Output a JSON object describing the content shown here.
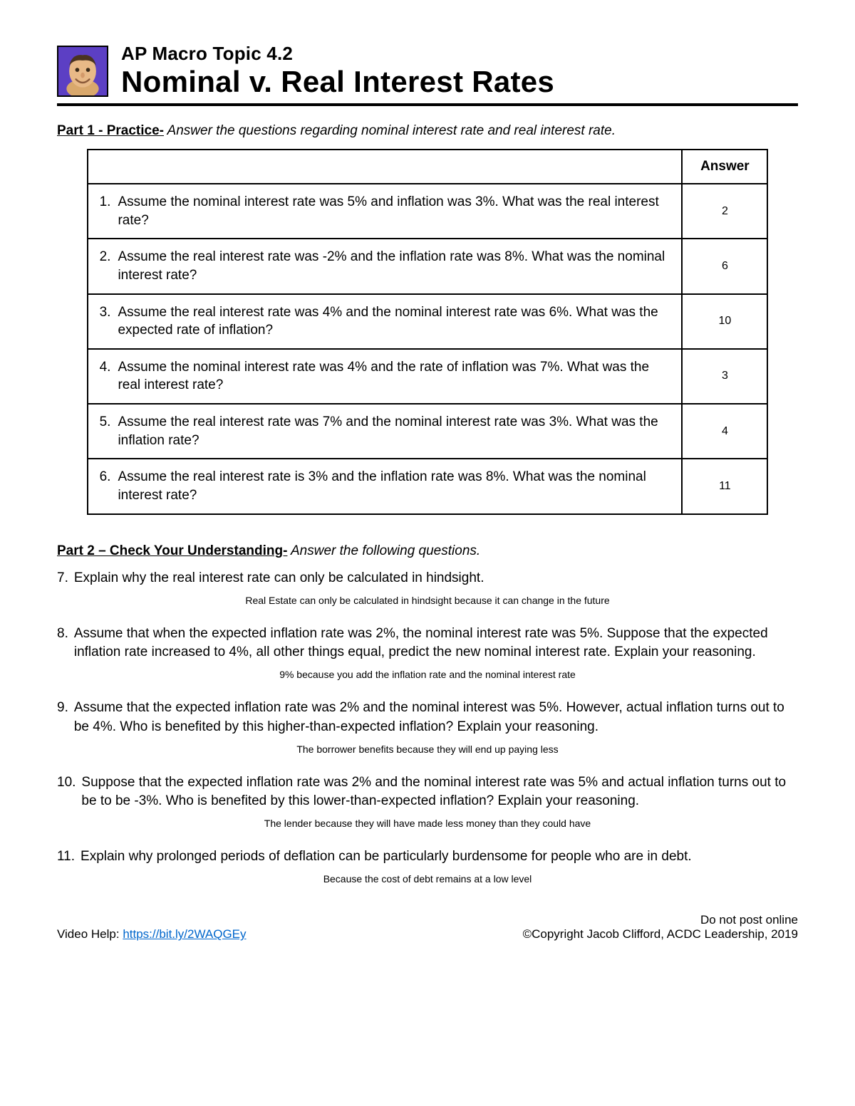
{
  "header": {
    "topic": "AP Macro Topic 4.2",
    "title": "Nominal v. Real Interest Rates"
  },
  "part1": {
    "label": "Part 1 - Practice-",
    "desc": " Answer the questions regarding nominal interest rate and real interest rate.",
    "answer_header": "Answer",
    "rows": [
      {
        "num": "1.",
        "text": "Assume the nominal interest rate was 5% and inflation was 3%. What was the real interest rate?",
        "answer": "2"
      },
      {
        "num": "2.",
        "text": "Assume the real interest rate was -2% and the inflation rate was 8%. What was the nominal interest rate?",
        "answer": "6"
      },
      {
        "num": "3.",
        "text": "Assume the real interest rate was 4% and the nominal interest rate was 6%. What was the expected rate of inflation?",
        "answer": "10"
      },
      {
        "num": "4.",
        "text": "Assume the nominal interest rate was 4% and the rate of inflation was 7%. What was the real interest rate?",
        "answer": "3"
      },
      {
        "num": "5.",
        "text": "Assume the real interest rate was 7% and the nominal interest rate was 3%. What was the inflation rate?",
        "answer": "4"
      },
      {
        "num": "6.",
        "text": "Assume the real interest rate is 3% and the inflation rate was 8%. What was the nominal interest rate?",
        "answer": "11"
      }
    ]
  },
  "part2": {
    "label": "Part 2 – Check Your Understanding-",
    "desc": " Answer the following questions.",
    "items": [
      {
        "num": "7.",
        "q": "Explain why the real interest rate can only be calculated in hindsight.",
        "a": "Real Estate can only be calculated in hindsight because it can change in the future"
      },
      {
        "num": "8.",
        "q": "Assume that when the expected inflation rate was 2%, the nominal interest rate was 5%. Suppose that the expected inflation rate increased to 4%, all other things equal, predict the new nominal interest rate. Explain your reasoning.",
        "a": "9% because you add the inflation rate and the nominal interest rate"
      },
      {
        "num": "9.",
        "q": "Assume that the expected inflation rate was 2% and the nominal interest was 5%. However, actual inflation turns out to be 4%. Who is benefited by this higher-than-expected inflation? Explain your reasoning.",
        "a": "The borrower benefits because they will end up paying less"
      },
      {
        "num": "10.",
        "q": "Suppose that the expected inflation rate was 2% and the nominal interest rate was 5% and actual inflation turns out to be to be -3%. Who is benefited by this lower-than-expected inflation? Explain your reasoning.",
        "a": "The lender because they will have made less money than they could have"
      },
      {
        "num": "11.",
        "q": "Explain why prolonged periods of deflation can be particularly burdensome for people who are in debt.",
        "a": "Because the cost of debt remains at a low level"
      }
    ]
  },
  "footer": {
    "video_label": "Video Help: ",
    "video_link": "https://bit.ly/2WAQGEy",
    "line1": "Do not post online",
    "line2": "©Copyright Jacob Clifford, ACDC Leadership, 2019"
  }
}
